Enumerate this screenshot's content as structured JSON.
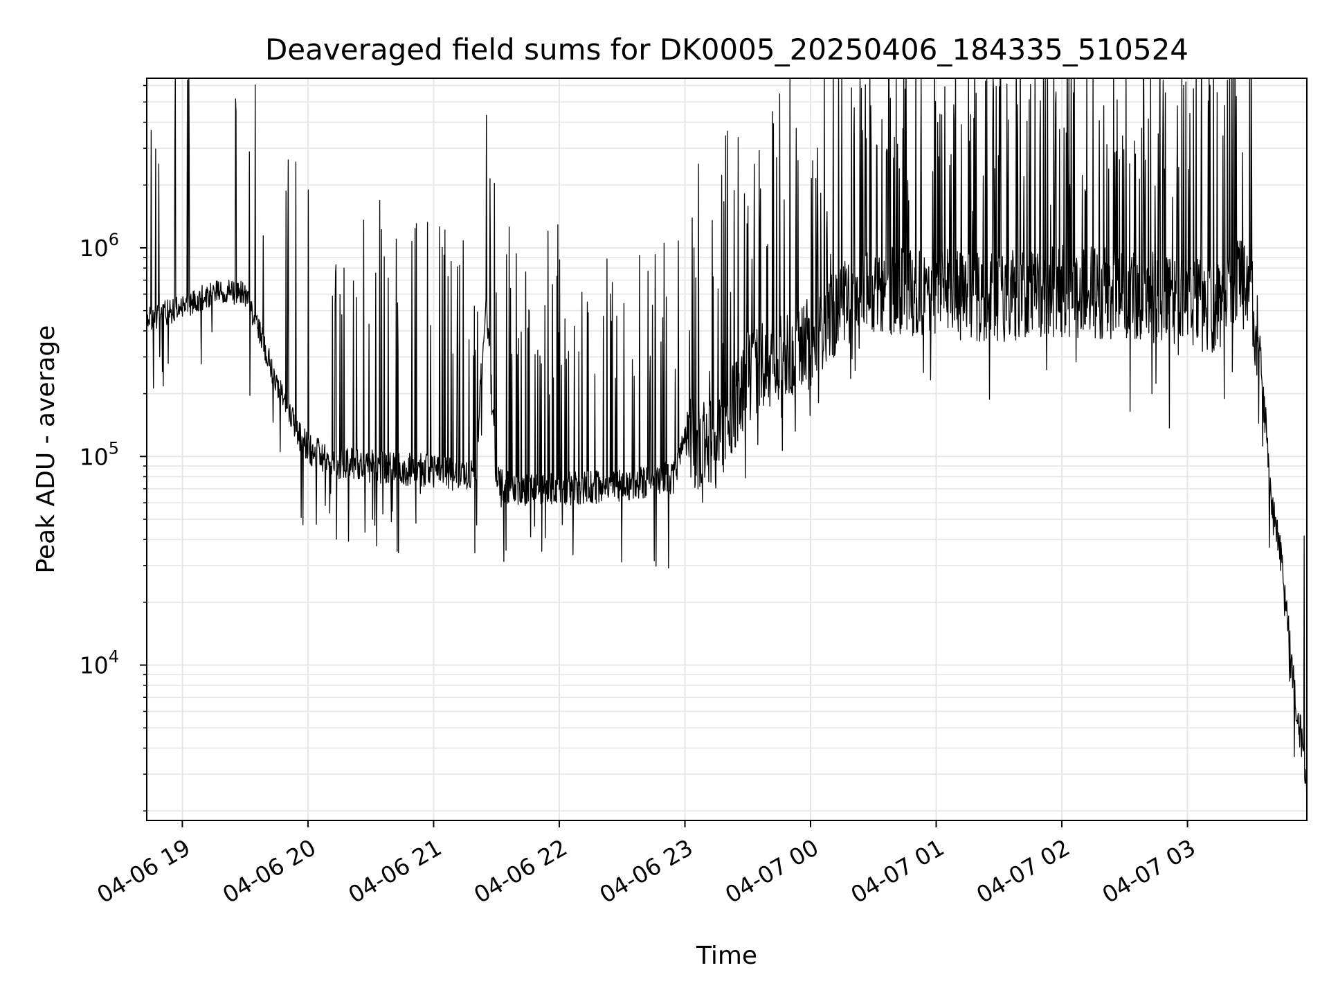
{
  "chart_data": {
    "type": "line",
    "title": "Deaveraged field sums for DK0005_20250406_184335_510524",
    "xlabel": "Time",
    "ylabel": "Peak ADU - average",
    "y_scale": "log",
    "ylim": [
      1800,
      6500000
    ],
    "xlim": [
      "2025-04-06 18:43",
      "2025-04-07 03:57"
    ],
    "grid": true,
    "line_color": "#000000",
    "x_ticks": [
      {
        "value": "2025-04-06 19:00",
        "label": "04-06 19"
      },
      {
        "value": "2025-04-06 20:00",
        "label": "04-06 20"
      },
      {
        "value": "2025-04-06 21:00",
        "label": "04-06 21"
      },
      {
        "value": "2025-04-06 22:00",
        "label": "04-06 22"
      },
      {
        "value": "2025-04-06 23:00",
        "label": "04-06 23"
      },
      {
        "value": "2025-04-07 00:00",
        "label": "04-07 00"
      },
      {
        "value": "2025-04-07 01:00",
        "label": "04-07 01"
      },
      {
        "value": "2025-04-07 02:00",
        "label": "04-07 02"
      },
      {
        "value": "2025-04-07 03:00",
        "label": "04-07 03"
      }
    ],
    "y_ticks": [
      {
        "value": 10000,
        "base": "10",
        "exp": "4"
      },
      {
        "value": 100000,
        "base": "10",
        "exp": "5"
      },
      {
        "value": 1000000,
        "base": "10",
        "exp": "6"
      }
    ],
    "series": [
      {
        "x": [
          "2025-04-06 18:43",
          "2025-04-06 18:50",
          "2025-04-06 19:00",
          "2025-04-06 19:10",
          "2025-04-06 19:20",
          "2025-04-06 19:30",
          "2025-04-06 19:35",
          "2025-04-06 19:40",
          "2025-04-06 19:45",
          "2025-04-06 19:50",
          "2025-04-06 19:55",
          "2025-04-06 20:00",
          "2025-04-06 20:10",
          "2025-04-06 20:30",
          "2025-04-06 21:00",
          "2025-04-06 21:20",
          "2025-04-06 21:25",
          "2025-04-06 21:30",
          "2025-04-06 21:40",
          "2025-04-06 22:00",
          "2025-04-06 22:30",
          "2025-04-06 22:55",
          "2025-04-06 23:00",
          "2025-04-06 23:15",
          "2025-04-06 23:30",
          "2025-04-06 23:45",
          "2025-04-07 00:00",
          "2025-04-07 00:15",
          "2025-04-07 00:30",
          "2025-04-07 01:00",
          "2025-04-07 01:30",
          "2025-04-07 02:00",
          "2025-04-07 02:30",
          "2025-04-07 03:00",
          "2025-04-07 03:15",
          "2025-04-07 03:25",
          "2025-04-07 03:30",
          "2025-04-07 03:35",
          "2025-04-07 03:40",
          "2025-04-07 03:45",
          "2025-04-07 03:50",
          "2025-04-07 03:55",
          "2025-04-07 03:57"
        ],
        "y": [
          450000,
          480000,
          520000,
          580000,
          620000,
          600000,
          450000,
          320000,
          220000,
          180000,
          130000,
          110000,
          95000,
          90000,
          85000,
          80000,
          600000,
          75000,
          68000,
          70000,
          72000,
          80000,
          120000,
          110000,
          250000,
          300000,
          350000,
          550000,
          650000,
          600000,
          580000,
          620000,
          600000,
          550000,
          500000,
          700000,
          600000,
          300000,
          60000,
          30000,
          9000,
          4000,
          2500
        ]
      }
    ]
  }
}
